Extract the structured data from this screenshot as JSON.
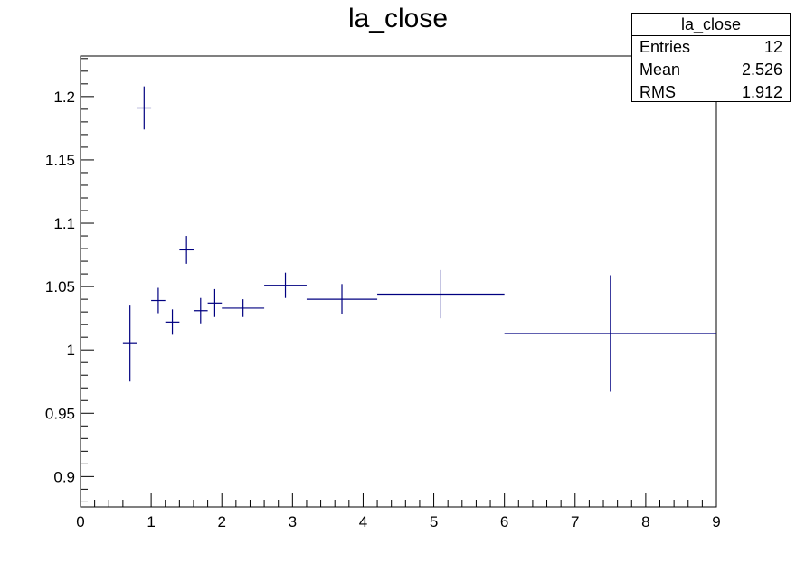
{
  "chart_data": {
    "type": "scatter",
    "title": "la_close",
    "xlabel": "",
    "ylabel": "",
    "xlim": [
      0,
      9
    ],
    "ylim": [
      0.876,
      1.232
    ],
    "x_ticks": [
      0,
      1,
      2,
      3,
      4,
      5,
      6,
      7,
      8,
      9
    ],
    "y_ticks": [
      0.9,
      0.95,
      1.0,
      1.05,
      1.1,
      1.15,
      1.2
    ],
    "x_tick_labels": [
      "0",
      "1",
      "2",
      "3",
      "4",
      "5",
      "6",
      "7",
      "8",
      "9"
    ],
    "y_tick_labels": [
      "0.9",
      "0.95",
      "1",
      "1.05",
      "1.1",
      "1.15",
      "1.2"
    ],
    "grid": false,
    "color": "#000080",
    "points": [
      {
        "x": 0.7,
        "y": 1.005,
        "xerr": 0.1,
        "yerr": 0.03
      },
      {
        "x": 0.9,
        "y": 1.191,
        "xerr": 0.1,
        "yerr": 0.017
      },
      {
        "x": 1.1,
        "y": 1.039,
        "xerr": 0.1,
        "yerr": 0.01
      },
      {
        "x": 1.3,
        "y": 1.022,
        "xerr": 0.1,
        "yerr": 0.01
      },
      {
        "x": 1.5,
        "y": 1.079,
        "xerr": 0.1,
        "yerr": 0.011
      },
      {
        "x": 1.7,
        "y": 1.031,
        "xerr": 0.1,
        "yerr": 0.01
      },
      {
        "x": 1.9,
        "y": 1.037,
        "xerr": 0.1,
        "yerr": 0.011
      },
      {
        "x": 2.3,
        "y": 1.033,
        "xerr": 0.3,
        "yerr": 0.007
      },
      {
        "x": 2.9,
        "y": 1.051,
        "xerr": 0.3,
        "yerr": 0.01
      },
      {
        "x": 3.7,
        "y": 1.04,
        "xerr": 0.5,
        "yerr": 0.012
      },
      {
        "x": 5.1,
        "y": 1.044,
        "xerr": 0.9,
        "yerr": 0.019
      },
      {
        "x": 7.5,
        "y": 1.013,
        "xerr": 1.5,
        "yerr": 0.046
      }
    ]
  },
  "stats": {
    "title": "la_close",
    "rows": [
      {
        "label": "Entries",
        "value": "12"
      },
      {
        "label": "Mean",
        "value": "2.526"
      },
      {
        "label": "RMS",
        "value": "1.912"
      }
    ]
  }
}
